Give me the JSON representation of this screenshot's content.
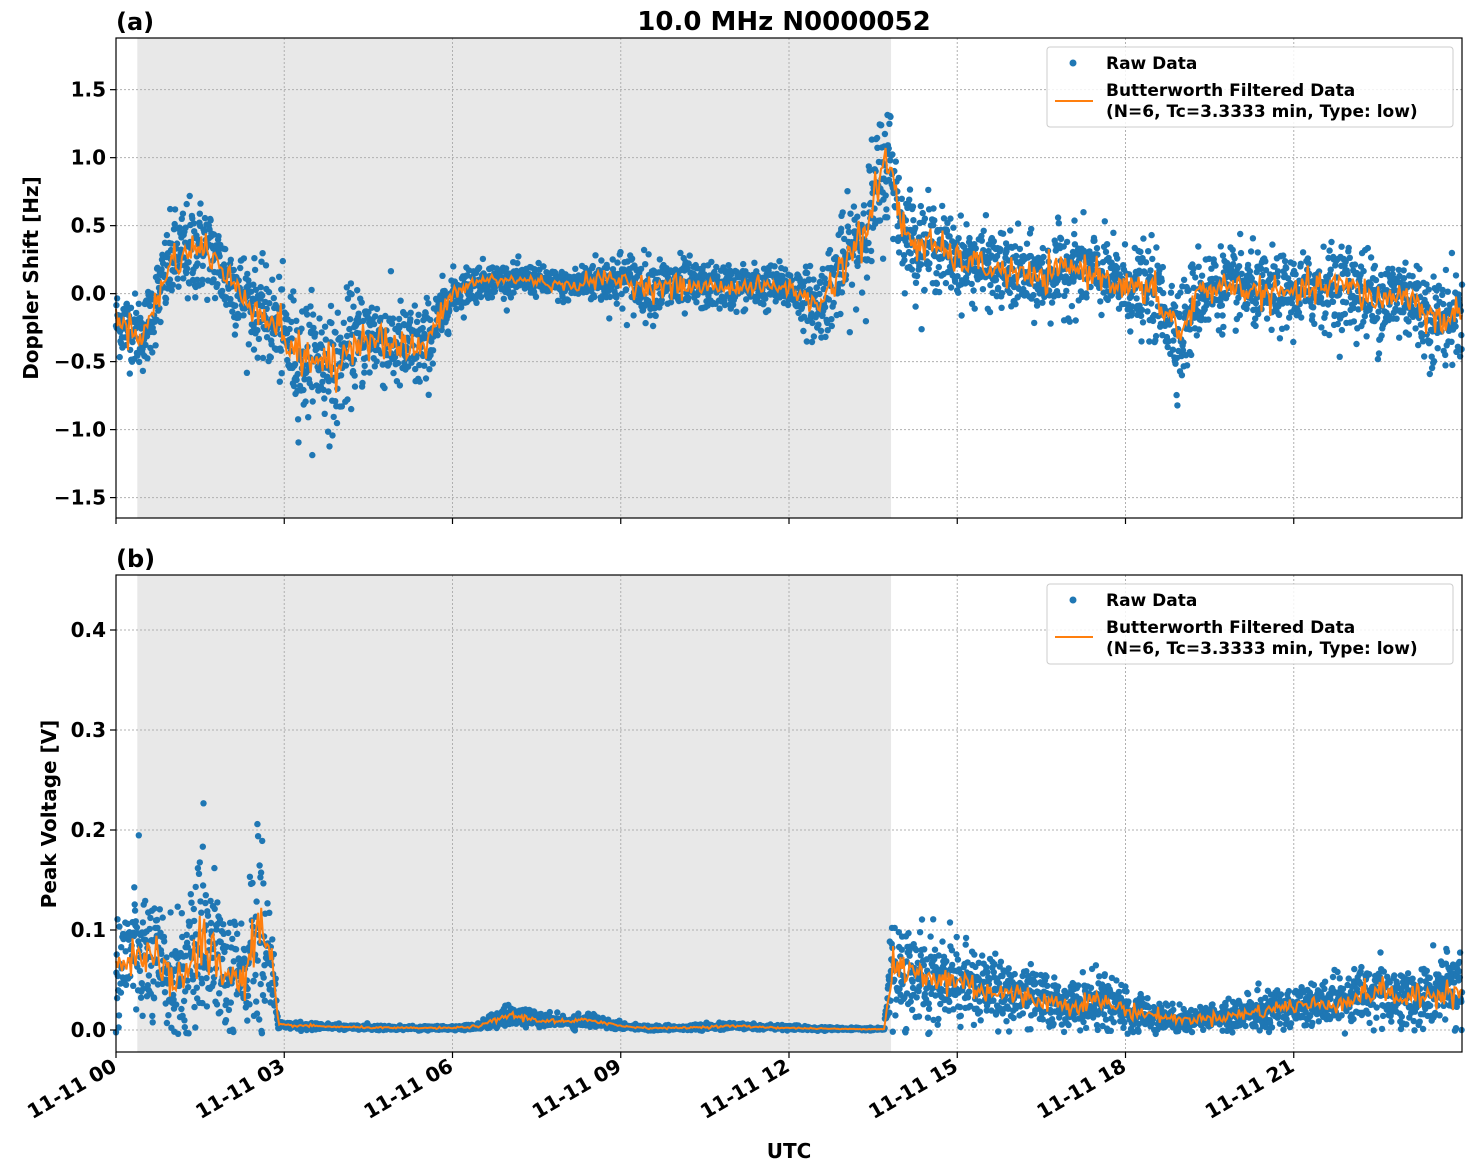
{
  "figure": {
    "title": "10.0 MHz N0000052",
    "xlabel": "UTC"
  },
  "chart_data": [
    {
      "type": "scatter",
      "panel_label": "(a)",
      "ylabel": "Doppler Shift [Hz]",
      "xlim": [
        0,
        24
      ],
      "ylim": [
        -1.65,
        1.88
      ],
      "y_ticks": [
        -1.5,
        -1.0,
        -0.5,
        0.0,
        0.5,
        1.0,
        1.5
      ],
      "y_tick_labels": [
        "−1.5",
        "−1.0",
        "−0.5",
        "0.0",
        "0.5",
        "1.0",
        "1.5"
      ],
      "x_ticks": [
        0,
        3,
        6,
        9,
        12,
        15,
        18,
        21
      ],
      "x_tick_labels": [
        "11-11 00",
        "11-11 03",
        "11-11 06",
        "11-11 09",
        "11-11 12",
        "11-11 15",
        "11-11 18",
        "11-11 21"
      ],
      "shaded_span": [
        0.38,
        13.82
      ],
      "grid": true,
      "legend": "top-right",
      "series": [
        {
          "name": "Raw Data",
          "style": "points",
          "color": "#1f77b4",
          "x": [
            0.0,
            0.5,
            1.0,
            1.3,
            1.6,
            2.0,
            2.5,
            3.0,
            3.3,
            3.6,
            3.9,
            4.2,
            4.6,
            5.0,
            5.5,
            6.0,
            6.5,
            7.0,
            7.5,
            8.0,
            8.5,
            9.0,
            9.5,
            10.0,
            10.5,
            11.0,
            11.5,
            12.0,
            12.5,
            12.8,
            13.1,
            13.4,
            13.6,
            13.8,
            14.0,
            14.3,
            14.6,
            15.0,
            15.5,
            16.0,
            16.5,
            17.0,
            17.5,
            18.0,
            18.5,
            19.0,
            19.3,
            19.6,
            20.0,
            20.5,
            21.0,
            21.5,
            22.0,
            22.5,
            23.0,
            23.5,
            24.0
          ],
          "y": [
            -0.2,
            -0.3,
            0.25,
            0.3,
            0.35,
            0.1,
            -0.1,
            -0.3,
            -0.5,
            -0.45,
            -0.6,
            -0.35,
            -0.3,
            -0.4,
            -0.4,
            0.0,
            0.1,
            0.1,
            0.1,
            0.05,
            0.1,
            0.1,
            0.05,
            0.05,
            0.05,
            0.05,
            0.05,
            0.05,
            -0.1,
            0.1,
            0.3,
            0.5,
            0.8,
            1.0,
            0.5,
            0.35,
            0.35,
            0.25,
            0.2,
            0.15,
            0.1,
            0.2,
            0.15,
            0.05,
            0.0,
            -0.3,
            0.0,
            0.05,
            0.05,
            0.0,
            0.0,
            0.05,
            0.05,
            -0.05,
            0.0,
            -0.2,
            -0.15
          ],
          "spread": [
            0.22,
            0.25,
            0.3,
            0.35,
            0.3,
            0.3,
            0.28,
            0.35,
            0.4,
            0.38,
            0.4,
            0.35,
            0.3,
            0.3,
            0.3,
            0.15,
            0.12,
            0.1,
            0.1,
            0.1,
            0.15,
            0.2,
            0.2,
            0.2,
            0.15,
            0.15,
            0.15,
            0.15,
            0.25,
            0.3,
            0.35,
            0.4,
            0.45,
            0.4,
            0.3,
            0.3,
            0.28,
            0.25,
            0.25,
            0.25,
            0.25,
            0.28,
            0.25,
            0.25,
            0.3,
            0.35,
            0.3,
            0.25,
            0.25,
            0.25,
            0.25,
            0.25,
            0.3,
            0.3,
            0.3,
            0.3,
            0.3
          ]
        },
        {
          "name": "Butterworth Filtered Data\n(N=6, Tc=3.3333 min, Type: low)",
          "style": "line",
          "color": "#ff7f0e",
          "x": [
            0.0,
            0.5,
            1.0,
            1.3,
            1.6,
            2.0,
            2.5,
            3.0,
            3.3,
            3.6,
            3.9,
            4.2,
            4.6,
            5.0,
            5.5,
            6.0,
            6.5,
            7.0,
            7.5,
            8.0,
            8.5,
            9.0,
            9.5,
            10.0,
            10.5,
            11.0,
            11.5,
            12.0,
            12.5,
            12.8,
            13.1,
            13.4,
            13.6,
            13.8,
            14.0,
            14.3,
            14.6,
            15.0,
            15.5,
            16.0,
            16.5,
            17.0,
            17.5,
            18.0,
            18.5,
            19.0,
            19.3,
            19.6,
            20.0,
            20.5,
            21.0,
            21.5,
            22.0,
            22.5,
            23.0,
            23.5,
            24.0
          ],
          "y": [
            -0.2,
            -0.3,
            0.25,
            0.3,
            0.35,
            0.1,
            -0.1,
            -0.3,
            -0.5,
            -0.45,
            -0.6,
            -0.35,
            -0.3,
            -0.4,
            -0.4,
            0.0,
            0.1,
            0.1,
            0.1,
            0.05,
            0.1,
            0.1,
            0.05,
            0.05,
            0.05,
            0.05,
            0.05,
            0.05,
            -0.1,
            0.1,
            0.3,
            0.5,
            0.8,
            1.0,
            0.5,
            0.35,
            0.35,
            0.25,
            0.2,
            0.15,
            0.1,
            0.2,
            0.15,
            0.05,
            0.0,
            -0.3,
            0.0,
            0.05,
            0.05,
            0.0,
            0.0,
            0.05,
            0.05,
            -0.05,
            0.0,
            -0.2,
            -0.15
          ]
        }
      ]
    },
    {
      "type": "scatter",
      "panel_label": "(b)",
      "ylabel": "Peak Voltage [V]",
      "xlim": [
        0,
        24
      ],
      "ylim": [
        -0.022,
        0.455
      ],
      "y_ticks": [
        0.0,
        0.1,
        0.2,
        0.3,
        0.4
      ],
      "y_tick_labels": [
        "0.0",
        "0.1",
        "0.2",
        "0.3",
        "0.4"
      ],
      "x_ticks": [
        0,
        3,
        6,
        9,
        12,
        15,
        18,
        21
      ],
      "x_tick_labels": [
        "11-11 00",
        "11-11 03",
        "11-11 06",
        "11-11 09",
        "11-11 12",
        "11-11 15",
        "11-11 18",
        "11-11 21"
      ],
      "shaded_span": [
        0.38,
        13.82
      ],
      "grid": true,
      "legend": "top-right",
      "series": [
        {
          "name": "Raw Data",
          "style": "points",
          "color": "#1f77b4",
          "x": [
            0.0,
            0.3,
            0.6,
            1.0,
            1.3,
            1.6,
            2.0,
            2.3,
            2.6,
            2.8,
            2.9,
            3.5,
            4.0,
            5.0,
            6.0,
            6.5,
            7.0,
            7.5,
            8.0,
            8.5,
            9.0,
            9.5,
            10.0,
            11.0,
            12.0,
            13.0,
            13.7,
            13.85,
            14.0,
            14.5,
            15.0,
            15.5,
            16.0,
            16.5,
            17.0,
            17.5,
            18.0,
            18.5,
            19.0,
            19.5,
            20.0,
            20.5,
            21.0,
            21.5,
            22.0,
            22.5,
            23.0,
            23.5,
            24.0
          ],
          "y": [
            0.06,
            0.08,
            0.07,
            0.05,
            0.06,
            0.09,
            0.05,
            0.06,
            0.1,
            0.05,
            0.005,
            0.004,
            0.003,
            0.002,
            0.002,
            0.004,
            0.015,
            0.01,
            0.008,
            0.01,
            0.004,
            0.002,
            0.002,
            0.004,
            0.002,
            0.001,
            0.001,
            0.07,
            0.06,
            0.05,
            0.05,
            0.04,
            0.035,
            0.03,
            0.025,
            0.03,
            0.02,
            0.015,
            0.01,
            0.012,
            0.015,
            0.02,
            0.025,
            0.025,
            0.03,
            0.04,
            0.03,
            0.035,
            0.045
          ],
          "spread": [
            0.05,
            0.06,
            0.06,
            0.05,
            0.06,
            0.08,
            0.05,
            0.06,
            0.1,
            0.05,
            0.003,
            0.003,
            0.002,
            0.002,
            0.002,
            0.003,
            0.01,
            0.006,
            0.006,
            0.006,
            0.003,
            0.002,
            0.002,
            0.003,
            0.002,
            0.001,
            0.001,
            0.06,
            0.05,
            0.04,
            0.04,
            0.03,
            0.03,
            0.025,
            0.02,
            0.025,
            0.02,
            0.015,
            0.01,
            0.012,
            0.015,
            0.018,
            0.02,
            0.02,
            0.025,
            0.03,
            0.025,
            0.03,
            0.04
          ]
        },
        {
          "name": "Butterworth Filtered Data\n(N=6, Tc=3.3333 min, Type: low)",
          "style": "line",
          "color": "#ff7f0e",
          "x": [
            0.0,
            0.3,
            0.6,
            1.0,
            1.3,
            1.6,
            2.0,
            2.3,
            2.6,
            2.8,
            2.9,
            3.5,
            4.0,
            5.0,
            6.0,
            6.5,
            7.0,
            7.5,
            8.0,
            8.5,
            9.0,
            9.5,
            10.0,
            11.0,
            12.0,
            13.0,
            13.7,
            13.85,
            14.0,
            14.5,
            15.0,
            15.5,
            16.0,
            16.5,
            17.0,
            17.5,
            18.0,
            18.5,
            19.0,
            19.5,
            20.0,
            20.5,
            21.0,
            21.5,
            22.0,
            22.5,
            23.0,
            23.5,
            24.0
          ],
          "y": [
            0.06,
            0.08,
            0.07,
            0.05,
            0.06,
            0.09,
            0.05,
            0.06,
            0.1,
            0.05,
            0.005,
            0.004,
            0.003,
            0.002,
            0.002,
            0.004,
            0.015,
            0.01,
            0.008,
            0.01,
            0.004,
            0.002,
            0.002,
            0.004,
            0.002,
            0.001,
            0.001,
            0.07,
            0.06,
            0.05,
            0.05,
            0.04,
            0.035,
            0.03,
            0.025,
            0.03,
            0.02,
            0.015,
            0.01,
            0.012,
            0.015,
            0.02,
            0.025,
            0.025,
            0.03,
            0.04,
            0.03,
            0.035,
            0.045
          ]
        }
      ]
    }
  ]
}
